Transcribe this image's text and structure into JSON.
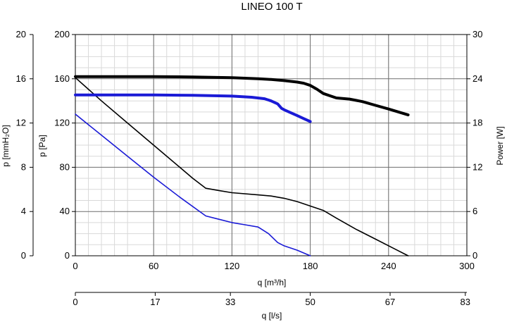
{
  "chart_data": {
    "type": "line",
    "title": "LINEO 100 T",
    "xlabel": "q [m³/h]",
    "xlabel_secondary": "q [l/s]",
    "ylabel_left_outer": "p [mmH₂O]",
    "ylabel_left_inner": "p [Pa]",
    "ylabel_right": "Power [W]",
    "xlim": [
      0,
      300
    ],
    "ylim": [
      0,
      200
    ],
    "grid": true,
    "x_ticks": [
      "0",
      "60",
      "120",
      "180",
      "240",
      "300"
    ],
    "x_secondary_ticks": [
      "0",
      "17",
      "33",
      "50",
      "67",
      "83"
    ],
    "x_secondary_tick_positions": [
      0,
      61.2,
      118.8,
      180,
      241.2,
      298.8
    ],
    "y_ticks_pa": [
      "0",
      "40",
      "80",
      "120",
      "160",
      "200"
    ],
    "y_ticks_mmh2o": [
      "0",
      "4",
      "8",
      "12",
      "16",
      "20"
    ],
    "y_ticks_power": [
      "0",
      "6",
      "12",
      "18",
      "24",
      "30"
    ],
    "series": [
      {
        "color": "#000000",
        "axis": "pressure",
        "kind": "pressure",
        "x": [
          0,
          20,
          40,
          60,
          80,
          90,
          100,
          110,
          120,
          140,
          150,
          160,
          170,
          180,
          190,
          200,
          215,
          230,
          245,
          255
        ],
        "y": [
          161,
          140,
          120,
          100,
          80,
          70,
          61,
          59,
          57,
          55,
          54,
          52,
          49,
          45,
          41,
          34,
          24,
          15,
          6,
          0
        ]
      },
      {
        "color": "#1a1ad6",
        "axis": "pressure",
        "kind": "pressure",
        "x": [
          0,
          20,
          40,
          60,
          80,
          100,
          110,
          120,
          130,
          140,
          148,
          155,
          160,
          170,
          180
        ],
        "y": [
          128,
          109,
          90,
          71,
          53,
          36,
          33,
          30,
          28,
          26,
          20,
          12,
          9,
          5,
          0
        ]
      },
      {
        "color": "#000000",
        "axis": "power",
        "kind": "power",
        "x": [
          0,
          30,
          60,
          90,
          120,
          140,
          150,
          160,
          170,
          175,
          180,
          185,
          190,
          195,
          200,
          210,
          220,
          230,
          240,
          255
        ],
        "y": [
          24.3,
          24.3,
          24.3,
          24.25,
          24.15,
          24.0,
          23.9,
          23.75,
          23.55,
          23.4,
          23.1,
          22.6,
          22.0,
          21.7,
          21.4,
          21.25,
          20.9,
          20.4,
          19.9,
          19.1
        ]
      },
      {
        "color": "#1a1ad6",
        "axis": "power",
        "kind": "power",
        "x": [
          0,
          30,
          60,
          90,
          120,
          135,
          145,
          150,
          155,
          158,
          160,
          165,
          170,
          175,
          180
        ],
        "y": [
          21.8,
          21.8,
          21.8,
          21.75,
          21.65,
          21.5,
          21.3,
          21.0,
          20.6,
          20.0,
          19.8,
          19.4,
          19.0,
          18.6,
          18.2
        ]
      }
    ]
  }
}
